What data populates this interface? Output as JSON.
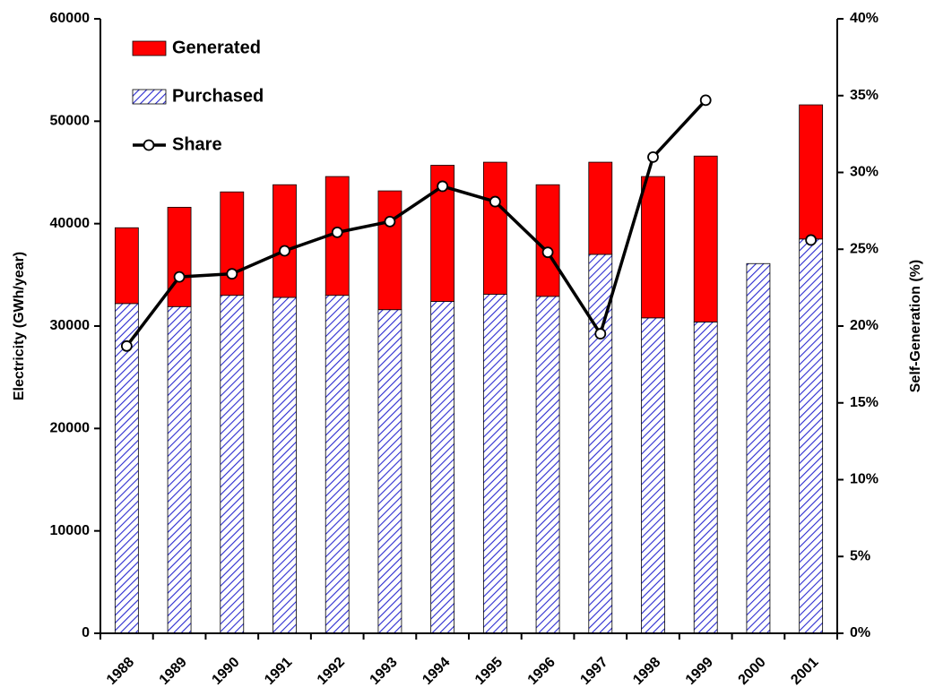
{
  "chart_data": {
    "type": "bar",
    "stacked": true,
    "categories": [
      "1988",
      "1989",
      "1990",
      "1991",
      "1992",
      "1993",
      "1994",
      "1995",
      "1996",
      "1997",
      "1998",
      "1999",
      "2000",
      "2001"
    ],
    "series": [
      {
        "name": "Generated",
        "type": "bar",
        "color": "#ff0000",
        "values": [
          7400,
          9700,
          10100,
          11000,
          11600,
          11600,
          13300,
          12900,
          10900,
          9000,
          13800,
          16200,
          null,
          13100
        ]
      },
      {
        "name": "Purchased",
        "type": "bar",
        "color": "#2b2bd0",
        "hatch": true,
        "values": [
          32200,
          31900,
          33000,
          32800,
          33000,
          31600,
          32400,
          33100,
          32900,
          37000,
          30800,
          30400,
          36100,
          38500
        ]
      },
      {
        "name": "Share",
        "type": "line",
        "axis": "y2",
        "color": "#000000",
        "values": [
          18.7,
          23.2,
          23.4,
          24.9,
          26.1,
          26.8,
          29.1,
          28.1,
          24.8,
          19.5,
          31.0,
          34.7,
          null,
          25.6
        ]
      }
    ],
    "y_label": "Electricity (GWh/year)",
    "y2_label": "Self-Generation (%)",
    "ylim": [
      0,
      60000
    ],
    "yticks": [
      0,
      10000,
      20000,
      30000,
      40000,
      50000,
      60000
    ],
    "y2lim": [
      0,
      40
    ],
    "y2ticks": [
      {
        "value": 0,
        "label": "0%"
      },
      {
        "value": 5,
        "label": "5%"
      },
      {
        "value": 10,
        "label": "10%"
      },
      {
        "value": 15,
        "label": "15%"
      },
      {
        "value": 20,
        "label": "20%"
      },
      {
        "value": 25,
        "label": "25%"
      },
      {
        "value": 30,
        "label": "30%"
      },
      {
        "value": 35,
        "label": "35%"
      },
      {
        "value": 40,
        "label": "40%"
      }
    ],
    "legend": "upper left"
  }
}
